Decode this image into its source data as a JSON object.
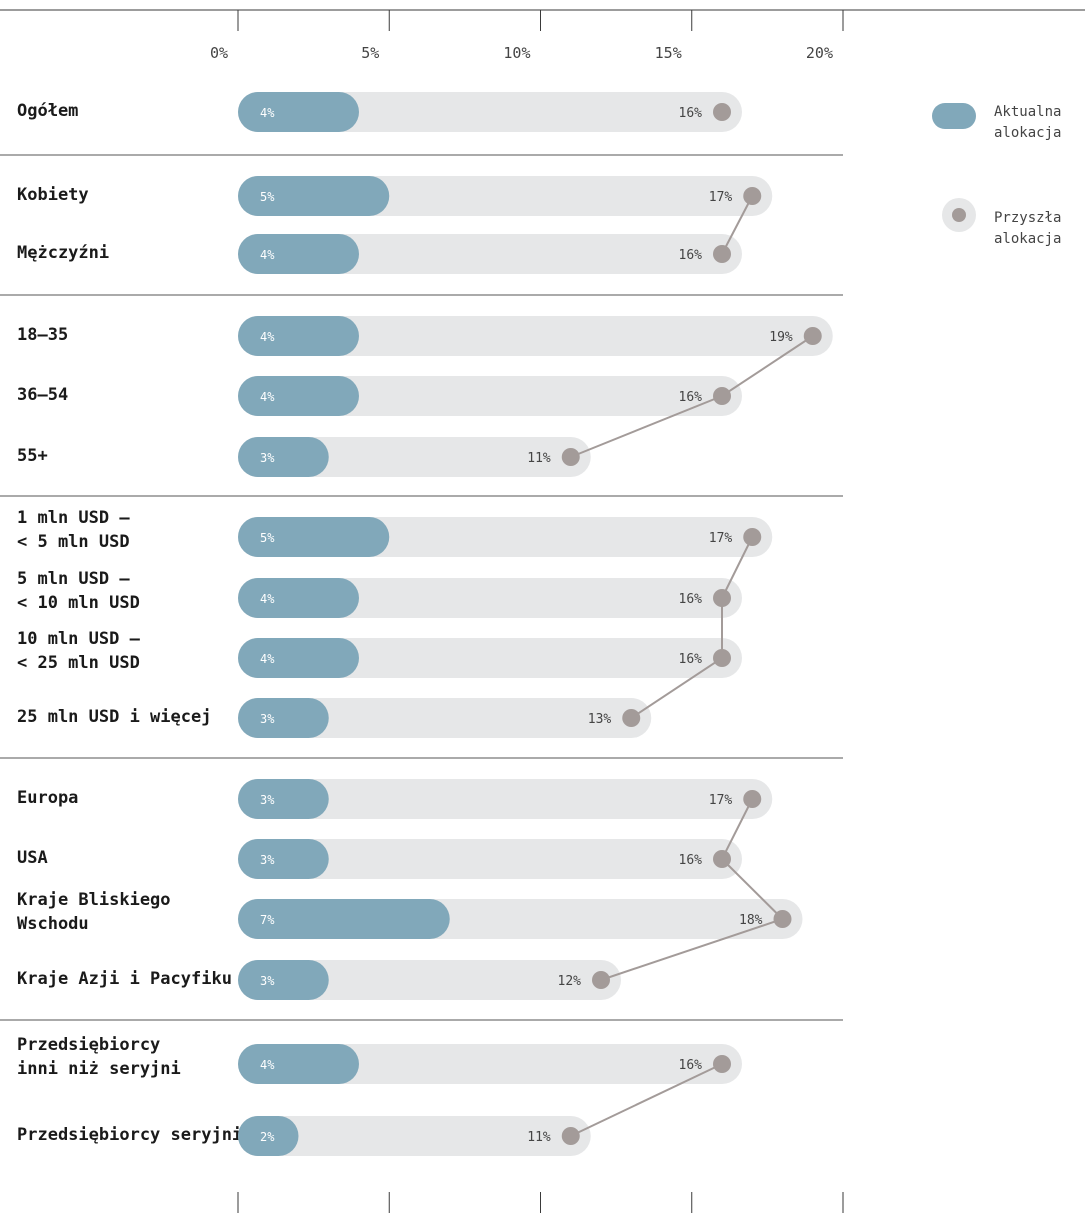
{
  "chart_data": {
    "type": "bar",
    "xlim": [
      0,
      20
    ],
    "x_tick_labels": [
      "0%",
      "5%",
      "10%",
      "15%",
      "20%"
    ],
    "x_ticks": [
      0,
      5,
      10,
      15,
      20
    ],
    "series": [
      {
        "name": "Aktualna alokacja",
        "color": "#81a8ba"
      },
      {
        "name": "Przyszła alokacja",
        "color": "#a39b99"
      }
    ],
    "groups": [
      {
        "rows": [
          {
            "label": "Ogółem",
            "current": 4,
            "future": 16
          }
        ]
      },
      {
        "rows": [
          {
            "label": "Kobiety",
            "current": 5,
            "future": 17
          },
          {
            "label": "Mężczyźni",
            "current": 4,
            "future": 16
          }
        ]
      },
      {
        "rows": [
          {
            "label": "18–35",
            "current": 4,
            "future": 19
          },
          {
            "label": "36–54",
            "current": 4,
            "future": 16
          },
          {
            "label": "55+",
            "current": 3,
            "future": 11
          }
        ]
      },
      {
        "rows": [
          {
            "label": "1 mln USD –\n< 5 mln USD",
            "current": 5,
            "future": 17
          },
          {
            "label": "5 mln USD –\n< 10 mln USD",
            "current": 4,
            "future": 16
          },
          {
            "label": "10 mln USD –\n< 25 mln USD",
            "current": 4,
            "future": 16
          },
          {
            "label": "25 mln USD i więcej",
            "current": 3,
            "future": 13
          }
        ]
      },
      {
        "rows": [
          {
            "label": "Europa",
            "current": 3,
            "future": 17
          },
          {
            "label": "USA",
            "current": 3,
            "future": 16
          },
          {
            "label": "Kraje Bliskiego\nWschodu",
            "current": 7,
            "future": 18
          },
          {
            "label": "Kraje Azji i Pacyfiku",
            "current": 3,
            "future": 12
          }
        ]
      },
      {
        "rows": [
          {
            "label": "Przedsiębiorcy\ninni niż seryjni",
            "current": 4,
            "future": 16
          },
          {
            "label": "Przedsiębiorcy seryjni",
            "current": 2,
            "future": 11
          }
        ]
      }
    ]
  },
  "legend": {
    "current_label": "Aktualna\nalokacja",
    "future_label": "Przyszła\nalokacja"
  }
}
